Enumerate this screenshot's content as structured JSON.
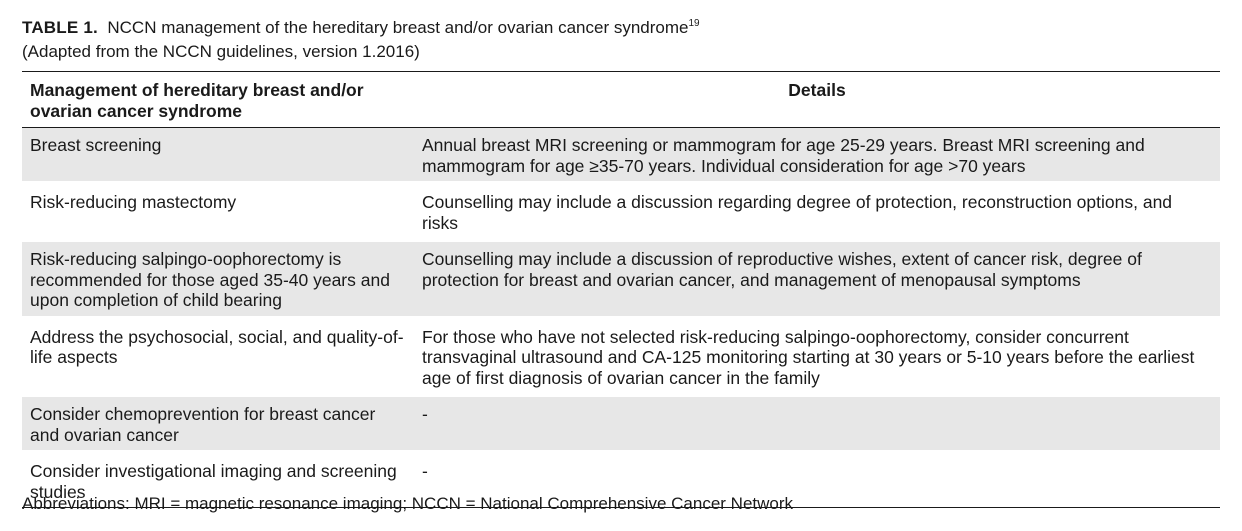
{
  "caption": {
    "label": "TABLE 1.",
    "title": "NCCN management of the hereditary breast and/or ovarian cancer syndrome",
    "reference": "19",
    "subtitle": "(Adapted from the NCCN guidelines, version 1.2016)"
  },
  "table": {
    "headers": [
      "Management of hereditary breast and/or ovarian cancer syndrome",
      "Details"
    ],
    "rows": [
      {
        "management": "Breast screening",
        "details": "Annual breast MRI screening or mammogram for age 25-29 years. Breast MRI screening and mammogram for age ≥35-70 years. Individual consideration for age >70 years"
      },
      {
        "management": "Risk-reducing mastectomy",
        "details": "Counselling may include a discussion regarding degree of protection, reconstruction options, and risks"
      },
      {
        "management": "Risk-reducing salpingo-oophorectomy is recommended for those aged 35-40 years and upon completion of child bearing",
        "details": "Counselling may include a discussion of reproductive wishes, extent of cancer risk, degree of protection for breast and ovarian cancer, and management of menopausal symptoms"
      },
      {
        "management": "Address the psychosocial, social, and quality-of-life aspects",
        "details": "For those who have not selected risk-reducing salpingo-oophorectomy, consider concurrent transvaginal ultrasound and CA-125 monitoring starting at 30 years or 5-10 years before the earliest age of first diagnosis of ovarian cancer in the family"
      },
      {
        "management": "Consider chemoprevention for breast cancer and ovarian cancer",
        "details": "-"
      },
      {
        "management": "Consider investigational imaging and screening studies",
        "details": "-"
      }
    ]
  },
  "footnote": "Abbreviations: MRI = magnetic resonance imaging; NCCN = National Comprehensive Cancer Network"
}
